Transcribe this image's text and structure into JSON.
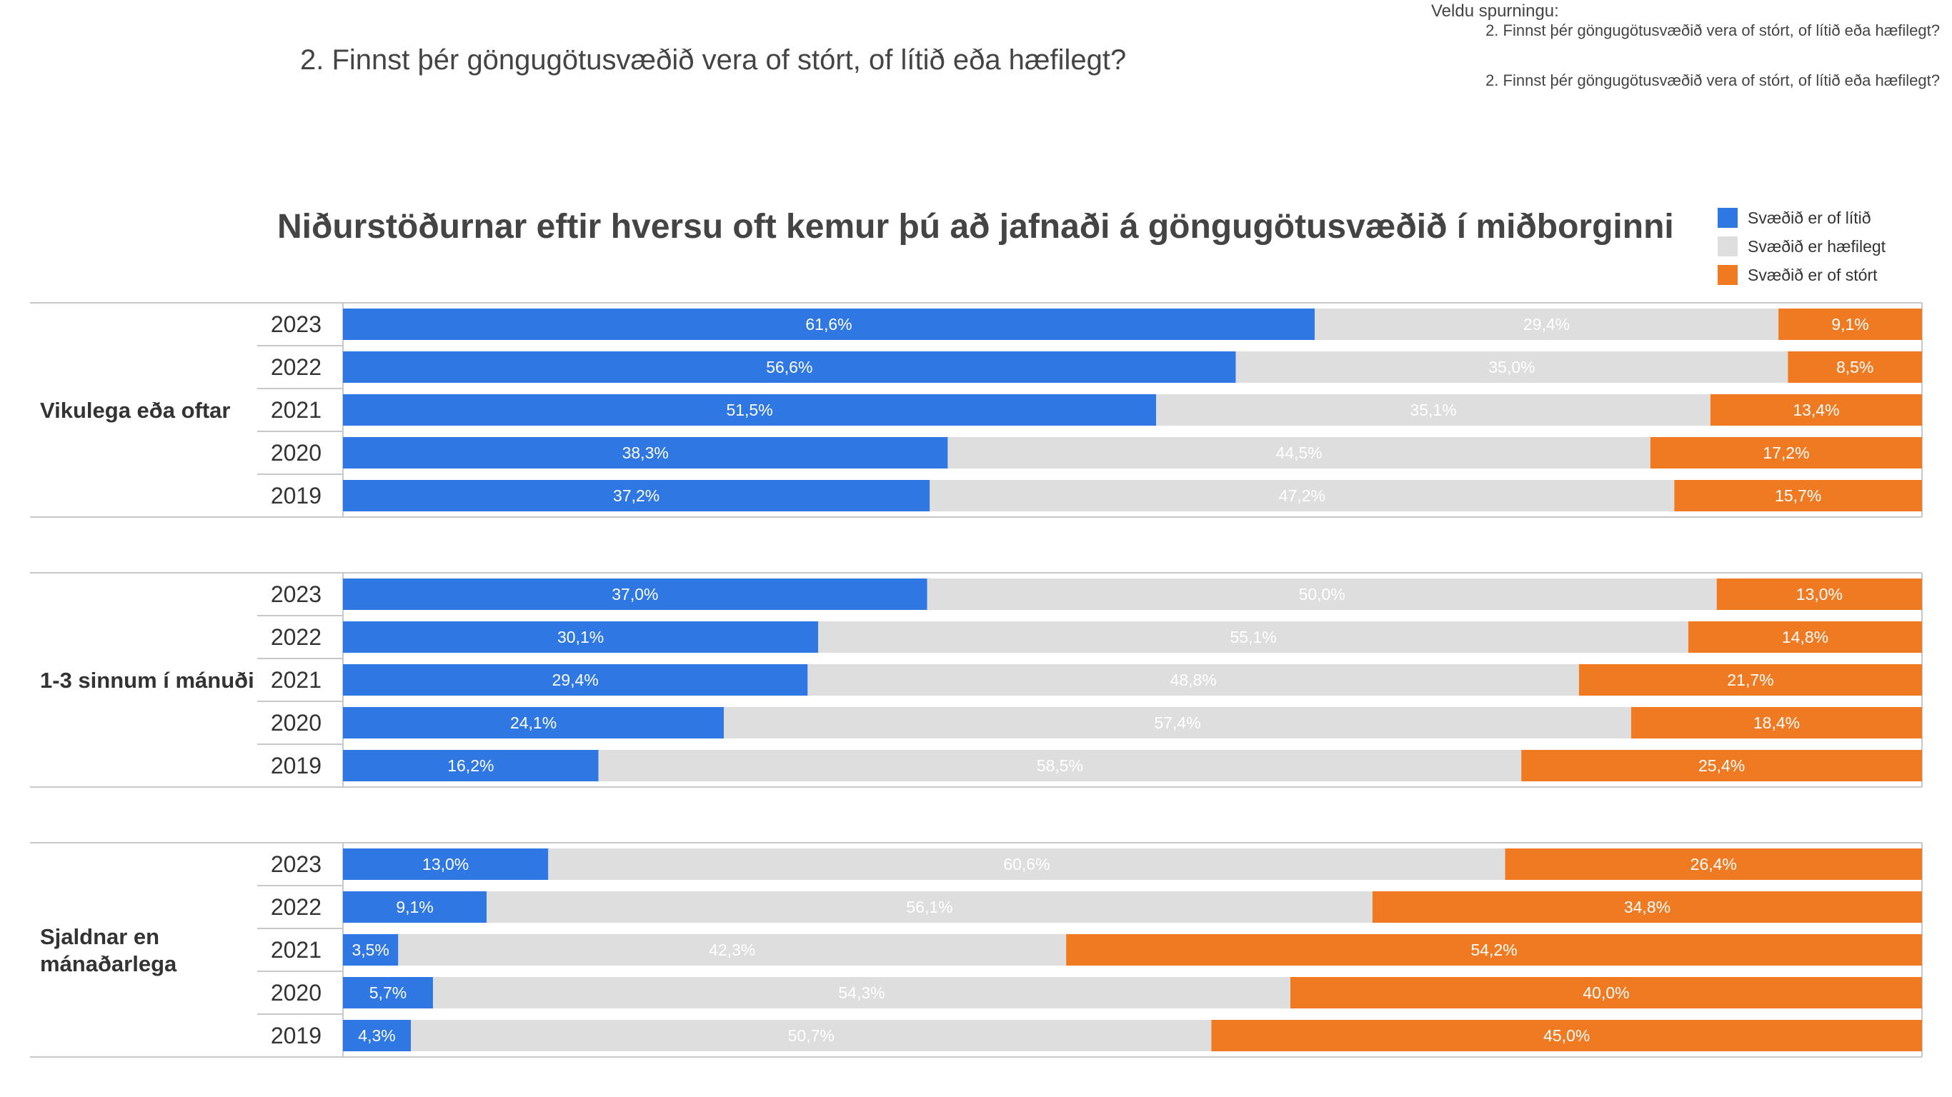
{
  "question": {
    "heading": "2. Finnst þér göngugötusvæðið vera of stórt, of lítið eða hæfilegt?",
    "selector_label": "Veldu spurningu:",
    "selector_options": [
      "2. Finnst þér göngugötusvæðið vera of stórt, of lítið eða hæfilegt?",
      "2. Finnst þér göngugötusvæðið vera of stórt, of lítið eða hæfilegt?"
    ]
  },
  "colors": {
    "litid": "#2F78E3",
    "haefilegt": "#DEDEDE",
    "stort": "#F07A22",
    "grid": "#C8C8C8"
  },
  "chart_data": {
    "type": "bar",
    "orientation": "horizontal",
    "stacked": true,
    "title": "Niðurstöðurnar eftir hversu oft kemur þú að jafnaði á göngugötusvæðið í miðborginni",
    "legend_position": "top-right",
    "xlim": [
      0,
      100
    ],
    "series": [
      {
        "name": "Svæðið er of lítið",
        "color_key": "litid"
      },
      {
        "name": "Svæðið er hæfilegt",
        "color_key": "haefilegt"
      },
      {
        "name": "Svæðið er of stórt",
        "color_key": "stort"
      }
    ],
    "groups": [
      {
        "label": "Vikulega eða oftar",
        "rows": [
          {
            "year": "2023",
            "values": [
              61.6,
              29.4,
              9.1
            ],
            "labels": [
              "61,6%",
              "29,4%",
              "9,1%"
            ]
          },
          {
            "year": "2022",
            "values": [
              56.6,
              35.0,
              8.5
            ],
            "labels": [
              "56,6%",
              "35,0%",
              "8,5%"
            ]
          },
          {
            "year": "2021",
            "values": [
              51.5,
              35.1,
              13.4
            ],
            "labels": [
              "51,5%",
              "35,1%",
              "13,4%"
            ]
          },
          {
            "year": "2020",
            "values": [
              38.3,
              44.5,
              17.2
            ],
            "labels": [
              "38,3%",
              "44,5%",
              "17,2%"
            ]
          },
          {
            "year": "2019",
            "values": [
              37.2,
              47.2,
              15.7
            ],
            "labels": [
              "37,2%",
              "47,2%",
              "15,7%"
            ]
          }
        ]
      },
      {
        "label": "1-3 sinnum í mánuði",
        "rows": [
          {
            "year": "2023",
            "values": [
              37.0,
              50.0,
              13.0
            ],
            "labels": [
              "37,0%",
              "50,0%",
              "13,0%"
            ]
          },
          {
            "year": "2022",
            "values": [
              30.1,
              55.1,
              14.8
            ],
            "labels": [
              "30,1%",
              "55,1%",
              "14,8%"
            ]
          },
          {
            "year": "2021",
            "values": [
              29.4,
              48.8,
              21.7
            ],
            "labels": [
              "29,4%",
              "48,8%",
              "21,7%"
            ]
          },
          {
            "year": "2020",
            "values": [
              24.1,
              57.4,
              18.4
            ],
            "labels": [
              "24,1%",
              "57,4%",
              "18,4%"
            ]
          },
          {
            "year": "2019",
            "values": [
              16.2,
              58.5,
              25.4
            ],
            "labels": [
              "16,2%",
              "58,5%",
              "25,4%"
            ]
          }
        ]
      },
      {
        "label": "Sjaldnar en mánaðarlega",
        "rows": [
          {
            "year": "2023",
            "values": [
              13.0,
              60.6,
              26.4
            ],
            "labels": [
              "13,0%",
              "60,6%",
              "26,4%"
            ]
          },
          {
            "year": "2022",
            "values": [
              9.1,
              56.1,
              34.8
            ],
            "labels": [
              "9,1%",
              "56,1%",
              "34,8%"
            ]
          },
          {
            "year": "2021",
            "values": [
              3.5,
              42.3,
              54.2
            ],
            "labels": [
              "3,5%",
              "42,3%",
              "54,2%"
            ]
          },
          {
            "year": "2020",
            "values": [
              5.7,
              54.3,
              40.0
            ],
            "labels": [
              "5,7%",
              "54,3%",
              "40,0%"
            ]
          },
          {
            "year": "2019",
            "values": [
              4.3,
              50.7,
              45.0
            ],
            "labels": [
              "4,3%",
              "50,7%",
              "45,0%"
            ]
          }
        ]
      }
    ]
  }
}
